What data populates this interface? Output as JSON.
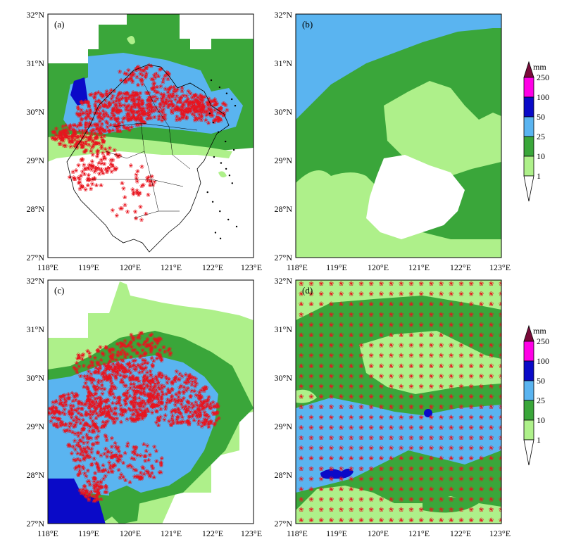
{
  "panels": [
    {
      "id": "a",
      "label": "(a)"
    },
    {
      "id": "b",
      "label": "(b)"
    },
    {
      "id": "c",
      "label": "(c)"
    },
    {
      "id": "d",
      "label": "(d)"
    }
  ],
  "axes": {
    "lat_ticks": [
      "27°N",
      "28°N",
      "29°N",
      "30°N",
      "31°N",
      "32°N"
    ],
    "lon_ticks": [
      "118°E",
      "119°E",
      "120°E",
      "121°E",
      "122°E",
      "123°E"
    ]
  },
  "colorbar": {
    "unit": "mm",
    "levels": [
      "1",
      "10",
      "25",
      "50",
      "100",
      "250"
    ],
    "colors": {
      "c1_10": "#aef08a",
      "c10_25": "#3aa63a",
      "c25_50": "#5ab4f0",
      "c50_100": "#0a0ac8",
      "c100_250": "#ff00e6",
      "c250_plus": "#7a0a3a"
    }
  },
  "colors": {
    "marker": "#e8141e",
    "boundary": "#000000"
  },
  "chart_data": {
    "type": "map",
    "lon_range": [
      118,
      123
    ],
    "lat_range": [
      27,
      32
    ],
    "legend_placement": "right"
  }
}
